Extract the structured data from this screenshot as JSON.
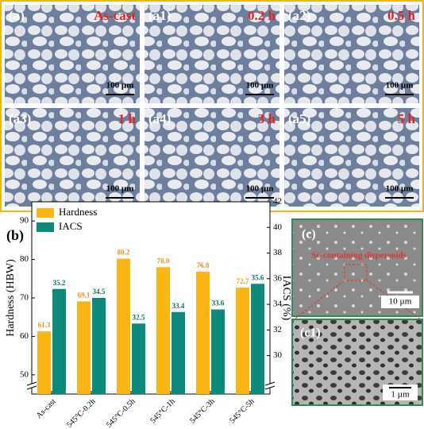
{
  "micrographs": [
    {
      "label": "(a)",
      "time": "As-cast",
      "scale": "100 µm"
    },
    {
      "label": "(a1)",
      "time": "0.2 h",
      "scale": "100 µm"
    },
    {
      "label": "(a2)",
      "time": "0.5 h",
      "scale": "100 µm"
    },
    {
      "label": "(a3)",
      "time": "1 h",
      "scale": "100 µm"
    },
    {
      "label": "(a4)",
      "time": "3 h",
      "scale": "100 µm"
    },
    {
      "label": "(a5)",
      "time": "5 h",
      "scale": "100 µm"
    }
  ],
  "chart_data": {
    "type": "bar",
    "panel_label": "(b)",
    "categories": [
      "As-cast",
      "545°C-0.2h",
      "545°C-0.5h",
      "545°C-1h",
      "545°C-3h",
      "545°C-5h"
    ],
    "ylabel": "Hardness (HBW)",
    "y2label": "IACS (%)",
    "ylim": [
      45,
      95
    ],
    "yticks": [
      50,
      60,
      70,
      80,
      90
    ],
    "y2lim": [
      27,
      42
    ],
    "y2ticks": [
      30,
      32,
      34,
      36,
      38,
      40,
      42
    ],
    "legend": "upper left",
    "series": [
      {
        "name": "Hardness",
        "color": "#fbb515",
        "label_color": "#e8902a",
        "values": [
          61.3,
          69.1,
          80.2,
          78.0,
          76.8,
          72.7
        ],
        "value_labels": [
          "61.3",
          "69.1",
          "80.2",
          "78.0",
          "76.8",
          "72.7"
        ]
      },
      {
        "name": "IACS",
        "color": "#0e8a7d",
        "label_color": "#0b6e63",
        "axis": "y2",
        "values": [
          35.2,
          34.5,
          32.5,
          33.4,
          33.6,
          35.6
        ],
        "value_labels": [
          "35.2",
          "34.5",
          "32.5",
          "33.4",
          "33.6",
          "35.6"
        ]
      }
    ]
  },
  "sem": [
    {
      "label": "(c)",
      "annotation": "Sc-containing dispersoids",
      "scale": "10 µm"
    },
    {
      "label": "(c1)",
      "scale": "1 µm"
    }
  ]
}
